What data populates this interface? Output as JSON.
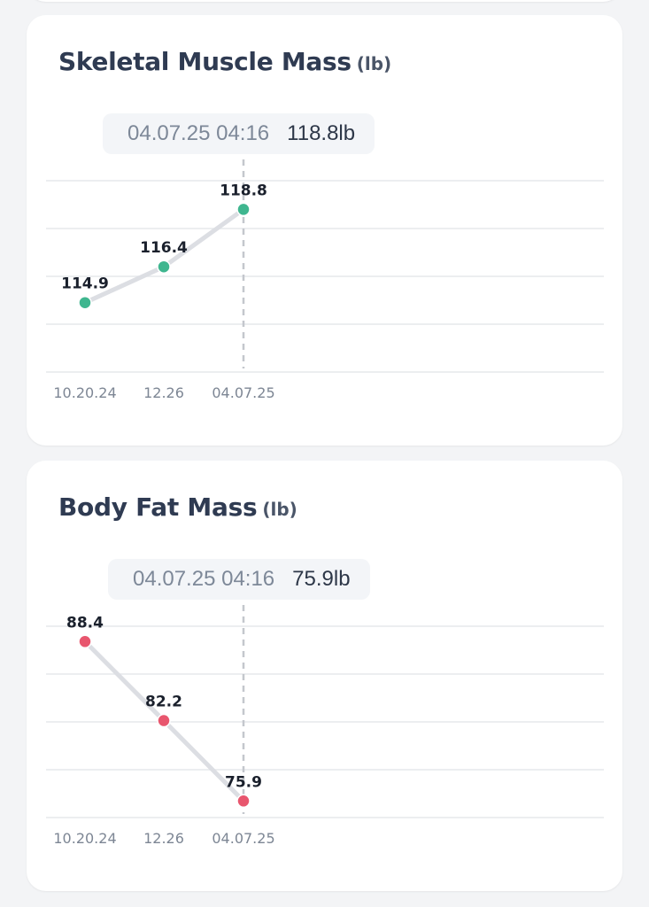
{
  "cards": [
    {
      "title": "Skeletal Muscle Mass",
      "unit": "(lb)",
      "tooltip": {
        "datetime": "04.07.25 04:16",
        "value": "118.8lb"
      },
      "point_color": "#3fb68f",
      "line_color": "#dcdee3",
      "chart_data": {
        "type": "line",
        "title": "Skeletal Muscle Mass (lb)",
        "categories": [
          "10.20.24",
          "12.26",
          "04.07.25"
        ],
        "series": [
          {
            "values": [
              114.9,
              116.4,
              118.8
            ],
            "labels": [
              "114.9",
              "116.4",
              "118.8"
            ]
          }
        ],
        "ylim": [
          112.0,
          120.0
        ],
        "grid": true,
        "highlight_index": 2
      }
    },
    {
      "title": "Body Fat Mass",
      "unit": "(lb)",
      "tooltip": {
        "datetime": "04.07.25 04:16",
        "value": "75.9lb"
      },
      "point_color": "#e8566e",
      "line_color": "#dcdee3",
      "chart_data": {
        "type": "line",
        "title": "Body Fat Mass (lb)",
        "categories": [
          "10.20.24",
          "12.26",
          "04.07.25"
        ],
        "series": [
          {
            "values": [
              88.4,
              82.2,
              75.9
            ],
            "labels": [
              "88.4",
              "82.2",
              "75.9"
            ]
          }
        ],
        "ylim": [
          74.6,
          89.6
        ],
        "grid": true,
        "highlight_index": 2
      }
    }
  ]
}
